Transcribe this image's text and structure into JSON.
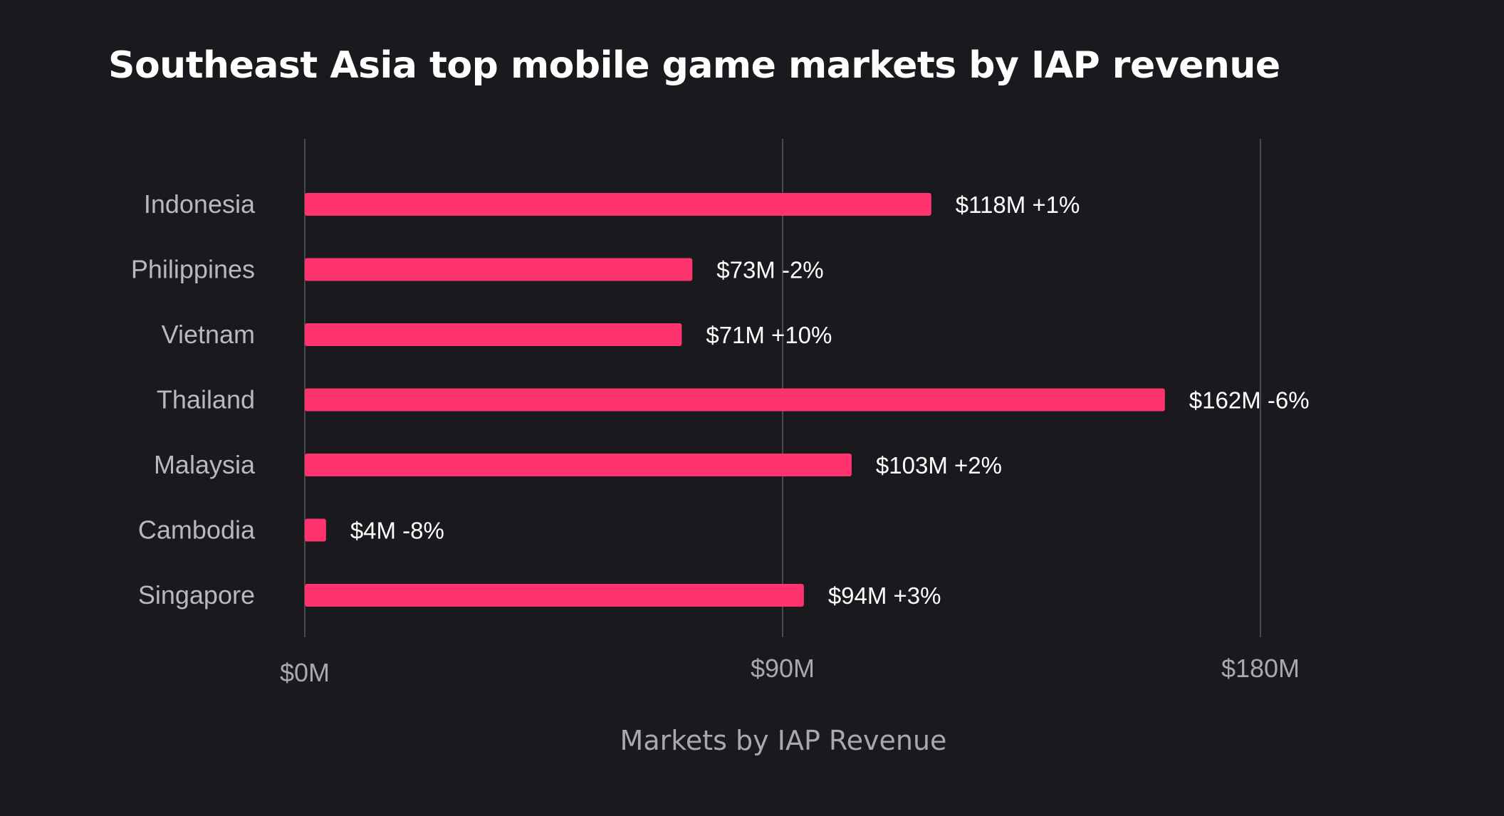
{
  "chart_data": {
    "type": "bar",
    "orientation": "horizontal",
    "title": "Southeast Asia top mobile game markets by IAP revenue",
    "xlabel": "Markets by IAP Revenue",
    "ylabel": "",
    "categories": [
      "Indonesia",
      "Philippines",
      "Vietnam",
      "Thailand",
      "Malaysia",
      "Cambodia",
      "Singapore"
    ],
    "values": [
      118,
      73,
      71,
      162,
      103,
      4,
      94
    ],
    "value_unit": "$M",
    "data_labels": [
      "$118M +1%",
      "$73M -2%",
      "$71M +10%",
      "$162M -6%",
      "$103M +2%",
      "$4M -8%",
      "$94M +3%"
    ],
    "x_ticks": [
      0,
      90,
      180
    ],
    "x_tick_labels": [
      "$0M",
      "$90M",
      "$180M"
    ],
    "xlim": [
      0,
      180
    ],
    "grid": "vertical",
    "legend": "none",
    "colors": {
      "background": "#1a191e",
      "bar": "#ff346e",
      "gridline": "#4a4950",
      "title": "#ffffff",
      "category_label": "#b9b8bd",
      "tick_label": "#a9a8ad",
      "data_label": "#ffffff"
    }
  }
}
